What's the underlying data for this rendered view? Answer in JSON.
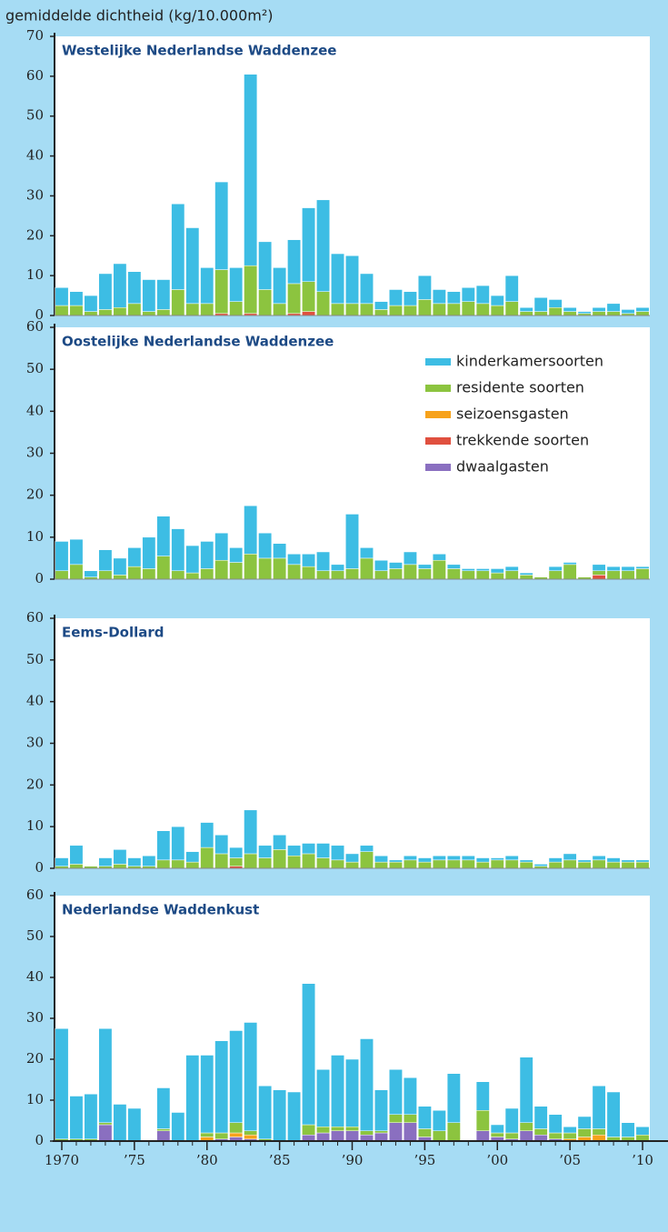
{
  "chart_data": [
    {
      "type": "bar",
      "stacked": true,
      "title": "Westelijke Nederlandse Waddenzee",
      "ylabel": "gemiddelde dichtheid (kg/10.000m²)",
      "x": [
        1970,
        1971,
        1972,
        1973,
        1974,
        1975,
        1976,
        1977,
        1978,
        1979,
        1980,
        1981,
        1982,
        1983,
        1984,
        1985,
        1986,
        1987,
        1988,
        1989,
        1990,
        1991,
        1992,
        1993,
        1994,
        1995,
        1996,
        1997,
        1998,
        1999,
        2000,
        2001,
        2002,
        2003,
        2004,
        2005,
        2006,
        2007,
        2008,
        2009,
        2010
      ],
      "ylim": [
        0,
        70
      ],
      "yticks": [
        0,
        10,
        20,
        30,
        40,
        50,
        60,
        70
      ],
      "series": [
        {
          "color": "#3dbde4",
          "values": [
            4.5,
            3.5,
            4,
            9,
            11,
            8,
            8,
            7.5,
            21.5,
            19,
            9,
            22,
            8.5,
            48,
            12,
            9,
            11,
            18.5,
            23,
            12.5,
            12,
            7.5,
            2,
            4,
            3.5,
            6,
            3.5,
            3,
            3.5,
            4.5,
            2.5,
            6.5,
            1,
            3.5,
            2,
            1,
            0.5,
            1,
            2,
            1,
            1
          ]
        },
        {
          "color": "#8cc43f",
          "values": [
            2.5,
            2.5,
            1,
            1.5,
            2,
            3,
            1,
            1.5,
            6.5,
            3,
            3,
            11,
            3.5,
            12,
            6.5,
            3,
            7.5,
            7.5,
            6,
            3,
            3,
            3,
            1.5,
            2.5,
            2.5,
            4,
            3,
            3,
            3.5,
            3,
            2.5,
            3.5,
            1,
            1,
            2,
            1,
            0.5,
            1,
            1,
            0.5,
            1
          ]
        },
        {
          "color": "#f7a21b",
          "values": [
            0,
            0,
            0,
            0,
            0,
            0,
            0,
            0,
            0,
            0,
            0,
            0,
            0,
            0,
            0,
            0,
            0,
            0,
            0,
            0,
            0,
            0,
            0,
            0,
            0,
            0,
            0,
            0,
            0,
            0,
            0,
            0,
            0,
            0,
            0,
            0,
            0,
            0,
            0,
            0,
            0
          ]
        },
        {
          "color": "#e0503f",
          "values": [
            0,
            0,
            0,
            0,
            0,
            0,
            0,
            0,
            0,
            0,
            0,
            0.5,
            0,
            0.5,
            0,
            0,
            0.5,
            1,
            0,
            0,
            0,
            0,
            0,
            0,
            0,
            0,
            0,
            0,
            0,
            0,
            0,
            0,
            0,
            0,
            0,
            0,
            0,
            0,
            0,
            0,
            0
          ]
        },
        {
          "color": "#8a6fc0",
          "values": [
            0,
            0,
            0,
            0,
            0,
            0,
            0,
            0,
            0,
            0,
            0,
            0,
            0,
            0,
            0,
            0,
            0,
            0,
            0,
            0,
            0,
            0,
            0,
            0,
            0,
            0,
            0,
            0,
            0,
            0,
            0,
            0,
            0,
            0,
            0,
            0,
            0,
            0,
            0,
            0,
            0
          ]
        }
      ]
    },
    {
      "type": "bar",
      "stacked": true,
      "title": "Oostelijke Nederlandse Waddenzee",
      "legend": "upper right",
      "x": [
        1970,
        1971,
        1972,
        1973,
        1974,
        1975,
        1976,
        1977,
        1978,
        1979,
        1980,
        1981,
        1982,
        1983,
        1984,
        1985,
        1986,
        1987,
        1988,
        1989,
        1990,
        1991,
        1992,
        1993,
        1994,
        1995,
        1996,
        1997,
        1998,
        1999,
        2000,
        2001,
        2002,
        2003,
        2004,
        2005,
        2006,
        2007,
        2008,
        2009,
        2010
      ],
      "ylim": [
        0,
        60
      ],
      "yticks": [
        0,
        10,
        20,
        30,
        40,
        50,
        60
      ],
      "series": [
        {
          "name": "kinderkamersoorten",
          "color": "#3dbde4",
          "values": [
            7,
            6,
            1.5,
            5,
            4,
            4.5,
            7.5,
            9.5,
            10,
            6.5,
            6.5,
            6.5,
            3.5,
            11.5,
            6,
            3.5,
            2.5,
            3,
            4.5,
            1.5,
            13,
            2.5,
            2.5,
            1.5,
            3,
            1,
            1.5,
            1,
            0.5,
            0.5,
            1,
            1,
            0.5,
            0,
            1,
            0.5,
            0,
            1.5,
            1,
            1,
            0.5
          ]
        },
        {
          "name": "residente soorten",
          "color": "#8cc43f",
          "values": [
            2,
            3.5,
            0.5,
            2,
            1,
            3,
            2.5,
            5.5,
            2,
            1.5,
            2.5,
            4.5,
            4,
            6,
            5,
            5,
            3.5,
            3,
            2,
            2,
            2.5,
            5,
            2,
            2.5,
            3.5,
            2.5,
            4.5,
            2.5,
            2,
            2,
            1.5,
            2,
            1,
            0.5,
            2,
            3.5,
            0.5,
            1,
            2,
            2,
            2.5
          ]
        },
        {
          "name": "seizoensgasten",
          "color": "#f7a21b",
          "values": [
            0,
            0,
            0,
            0,
            0,
            0,
            0,
            0,
            0,
            0,
            0,
            0,
            0,
            0,
            0,
            0,
            0,
            0,
            0,
            0,
            0,
            0,
            0,
            0,
            0,
            0,
            0,
            0,
            0,
            0,
            0,
            0,
            0,
            0,
            0,
            0,
            0,
            0,
            0,
            0,
            0
          ]
        },
        {
          "name": "trekkende soorten",
          "color": "#e0503f",
          "values": [
            0,
            0,
            0,
            0,
            0,
            0,
            0,
            0,
            0,
            0,
            0,
            0,
            0,
            0,
            0,
            0,
            0,
            0,
            0,
            0,
            0,
            0,
            0,
            0,
            0,
            0,
            0,
            0,
            0,
            0,
            0,
            0,
            0,
            0,
            0,
            0,
            0,
            1,
            0,
            0,
            0
          ]
        },
        {
          "name": "dwaalgasten",
          "color": "#8a6fc0",
          "values": [
            0,
            0,
            0,
            0,
            0,
            0,
            0,
            0,
            0,
            0,
            0,
            0,
            0,
            0,
            0,
            0,
            0,
            0,
            0,
            0,
            0,
            0,
            0,
            0,
            0,
            0,
            0,
            0,
            0,
            0,
            0,
            0,
            0,
            0,
            0,
            0,
            0,
            0,
            0,
            0,
            0
          ]
        }
      ]
    },
    {
      "type": "bar",
      "stacked": true,
      "title": "Eems-Dollard",
      "x": [
        1970,
        1971,
        1972,
        1973,
        1974,
        1975,
        1976,
        1977,
        1978,
        1979,
        1980,
        1981,
        1982,
        1983,
        1984,
        1985,
        1986,
        1987,
        1988,
        1989,
        1990,
        1991,
        1992,
        1993,
        1994,
        1995,
        1996,
        1997,
        1998,
        1999,
        2000,
        2001,
        2002,
        2003,
        2004,
        2005,
        2006,
        2007,
        2008,
        2009,
        2010
      ],
      "ylim": [
        0,
        60
      ],
      "yticks": [
        0,
        10,
        20,
        30,
        40,
        50,
        60
      ],
      "series": [
        {
          "color": "#3dbde4",
          "values": [
            2,
            4.5,
            0,
            2,
            3.5,
            2,
            2.5,
            7,
            8,
            2.5,
            6,
            4.5,
            2.5,
            10.5,
            3,
            3.5,
            2.5,
            2.5,
            3.5,
            3.5,
            2,
            1.5,
            1.5,
            0.5,
            1,
            1,
            1,
            1,
            1,
            1,
            0.5,
            1,
            0.5,
            0.5,
            1,
            1.5,
            0.5,
            1,
            1,
            0.5,
            0.5
          ]
        },
        {
          "color": "#8cc43f",
          "values": [
            0.5,
            1,
            0.5,
            0.5,
            1,
            0.5,
            0.5,
            2,
            2,
            1.5,
            5,
            3.5,
            2,
            3.5,
            2.5,
            4.5,
            3,
            3.5,
            2.5,
            2,
            1.5,
            4,
            1.5,
            1.5,
            2,
            1.5,
            2,
            2,
            2,
            1.5,
            2,
            2,
            1.5,
            0.5,
            1.5,
            2,
            1.5,
            2,
            1.5,
            1.5,
            1.5
          ]
        },
        {
          "color": "#f7a21b",
          "values": [
            0,
            0,
            0,
            0,
            0,
            0,
            0,
            0,
            0,
            0,
            0,
            0,
            0,
            0,
            0,
            0,
            0,
            0,
            0,
            0,
            0,
            0,
            0,
            0,
            0,
            0,
            0,
            0,
            0,
            0,
            0,
            0,
            0,
            0,
            0,
            0,
            0,
            0,
            0,
            0,
            0
          ]
        },
        {
          "color": "#e0503f",
          "values": [
            0,
            0,
            0,
            0,
            0,
            0,
            0,
            0,
            0,
            0,
            0,
            0,
            0.5,
            0,
            0,
            0,
            0,
            0,
            0,
            0,
            0,
            0,
            0,
            0,
            0,
            0,
            0,
            0,
            0,
            0,
            0,
            0,
            0,
            0,
            0,
            0,
            0,
            0,
            0,
            0,
            0
          ]
        },
        {
          "color": "#8a6fc0",
          "values": [
            0,
            0,
            0,
            0,
            0,
            0,
            0,
            0,
            0,
            0,
            0,
            0,
            0,
            0,
            0,
            0,
            0,
            0,
            0,
            0,
            0,
            0,
            0,
            0,
            0,
            0,
            0,
            0,
            0,
            0,
            0,
            0,
            0,
            0,
            0,
            0,
            0,
            0,
            0,
            0,
            0
          ]
        }
      ]
    },
    {
      "type": "bar",
      "stacked": true,
      "title": "Nederlandse Waddenkust",
      "x": [
        1970,
        1971,
        1972,
        1973,
        1974,
        1975,
        1976,
        1977,
        1978,
        1979,
        1980,
        1981,
        1982,
        1983,
        1984,
        1985,
        1986,
        1987,
        1988,
        1989,
        1990,
        1991,
        1992,
        1993,
        1994,
        1995,
        1996,
        1997,
        1998,
        1999,
        2000,
        2001,
        2002,
        2003,
        2004,
        2005,
        2006,
        2007,
        2008,
        2009,
        2010
      ],
      "xlim": [
        1969.5,
        2010.5
      ],
      "xticks": [
        1970,
        {
          "value": 1975,
          "label": "’75"
        },
        {
          "value": 1980,
          "label": "’80"
        },
        {
          "value": 1985,
          "label": "’85"
        },
        {
          "value": 1990,
          "label": "’90"
        },
        {
          "value": 1995,
          "label": "’95"
        },
        {
          "value": 2000,
          "label": "’00"
        },
        {
          "value": 2005,
          "label": "’05"
        },
        {
          "value": 2010,
          "label": "’10"
        }
      ],
      "ylim": [
        0,
        60
      ],
      "yticks": [
        0,
        10,
        20,
        30,
        40,
        50,
        60
      ],
      "series": [
        {
          "color": "#3dbde4",
          "values": [
            27,
            10.5,
            11,
            23,
            9,
            8,
            0,
            10,
            7,
            21,
            19,
            22.5,
            22.5,
            26.5,
            13,
            12.5,
            12,
            34.5,
            14,
            17.5,
            16.5,
            22.5,
            10,
            11,
            9,
            5.5,
            5,
            12,
            0,
            7,
            2,
            6,
            16,
            5.5,
            4.5,
            1.5,
            3,
            10.5,
            11,
            3.5,
            2
          ]
        },
        {
          "color": "#8cc43f",
          "values": [
            0.5,
            0.5,
            0.5,
            0.5,
            0,
            0,
            0,
            0.5,
            0,
            0,
            1,
            1.5,
            2.5,
            1,
            0.5,
            0,
            0,
            2.5,
            1.5,
            1,
            1,
            1,
            0.5,
            2,
            2,
            2,
            2.5,
            4.5,
            0,
            5,
            1,
            1.5,
            2,
            1.5,
            1.5,
            1.5,
            2,
            1.5,
            1,
            1,
            1.5
          ]
        },
        {
          "color": "#f7a21b",
          "values": [
            0,
            0,
            0,
            0,
            0,
            0,
            0,
            0,
            0,
            0,
            1,
            0,
            1,
            1,
            0,
            0,
            0,
            0,
            0,
            0,
            0,
            0,
            0,
            0,
            0,
            0,
            0,
            0,
            0,
            0,
            0,
            0,
            0,
            0,
            0,
            0.5,
            1,
            1.5,
            0,
            0,
            0
          ]
        },
        {
          "color": "#e0503f",
          "values": [
            0,
            0,
            0,
            0,
            0,
            0,
            0,
            0,
            0,
            0,
            0,
            0,
            0,
            0,
            0,
            0,
            0,
            0,
            0,
            0,
            0,
            0,
            0,
            0,
            0,
            0,
            0,
            0,
            0,
            0,
            0,
            0,
            0,
            0,
            0,
            0,
            0,
            0,
            0,
            0,
            0
          ]
        },
        {
          "color": "#8a6fc0",
          "values": [
            0,
            0,
            0,
            4,
            0,
            0,
            0,
            2.5,
            0,
            0,
            0,
            0.5,
            1,
            0.5,
            0,
            0,
            0,
            1.5,
            2,
            2.5,
            2.5,
            1.5,
            2,
            4.5,
            4.5,
            1,
            0,
            0,
            0,
            2.5,
            1,
            0.5,
            2.5,
            1.5,
            0.5,
            0,
            0,
            0,
            0,
            0,
            0
          ]
        }
      ]
    }
  ]
}
